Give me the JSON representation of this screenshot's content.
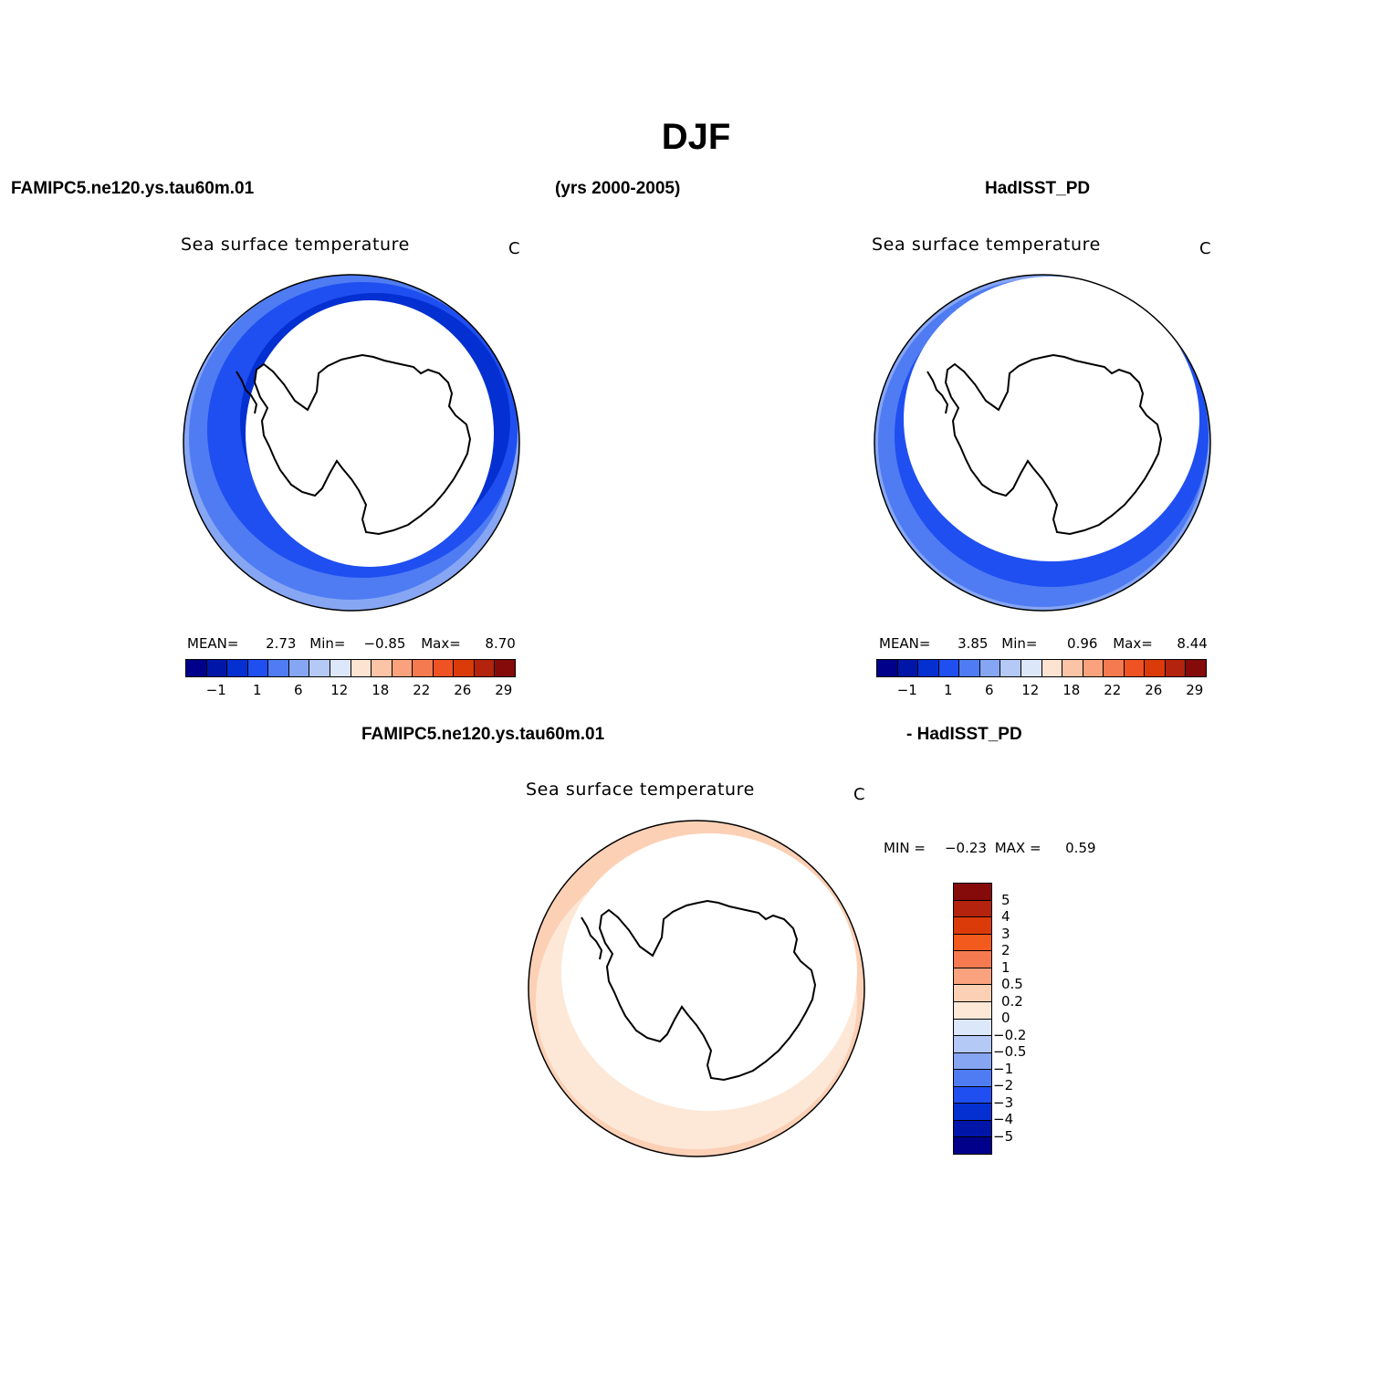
{
  "figure": {
    "title": "DJF",
    "model_label": "FAMIPC5.ne120.ys.tau60m.01",
    "years_label": "(yrs 2000-2005)",
    "obs_label": "HadISST_PD",
    "diff_left_label": "FAMIPC5.ne120.ys.tau60m.01",
    "diff_right_label": "- HadISST_PD"
  },
  "panels": [
    {
      "title": "Sea surface temperature",
      "units": "C",
      "stats": {
        "mean_label": "MEAN=",
        "mean": "2.73",
        "min_label": "Min=",
        "min": "−0.85",
        "max_label": "Max=",
        "max": "8.70"
      },
      "colorbar_ticks": [
        "−1",
        "1",
        "6",
        "12",
        "18",
        "22",
        "26",
        "29"
      ]
    },
    {
      "title": "Sea surface temperature",
      "units": "C",
      "stats": {
        "mean_label": "MEAN=",
        "mean": "3.85",
        "min_label": "Min=",
        "min": "0.96",
        "max_label": "Max=",
        "max": "8.44"
      },
      "colorbar_ticks": [
        "−1",
        "1",
        "6",
        "12",
        "18",
        "22",
        "26",
        "29"
      ]
    },
    {
      "title": "Sea surface temperature",
      "units": "C",
      "stats": {
        "min_label": "MIN =",
        "min": "−0.23",
        "max_label": "MAX =",
        "max": "0.59"
      },
      "colorbar_ticks": [
        "5",
        "4",
        "3",
        "2",
        "1",
        "0.5",
        "0.2",
        "0",
        "−0.2",
        "−0.5",
        "−1",
        "−2",
        "−3",
        "−4",
        "−5"
      ]
    }
  ],
  "colors": {
    "abs_scale": [
      "#00008b",
      "#0016a8",
      "#0430d2",
      "#1f4ff0",
      "#4f7cf2",
      "#86a6f4",
      "#b4c9f6",
      "#dce7fa",
      "#fde3d2",
      "#fcc4a6",
      "#f9a27d",
      "#f67a50",
      "#ef5323",
      "#db3b08",
      "#b3230e",
      "#850a0a"
    ],
    "diff_scale": [
      "#850a0a",
      "#b3230e",
      "#db3b08",
      "#f25a1e",
      "#f67a50",
      "#f9a27d",
      "#fcd0b5",
      "#fde8d8",
      "#dce7fa",
      "#b4c9f6",
      "#86a6f4",
      "#4f7cf2",
      "#1f4ff0",
      "#0430d2",
      "#0016a8",
      "#00008b"
    ]
  }
}
